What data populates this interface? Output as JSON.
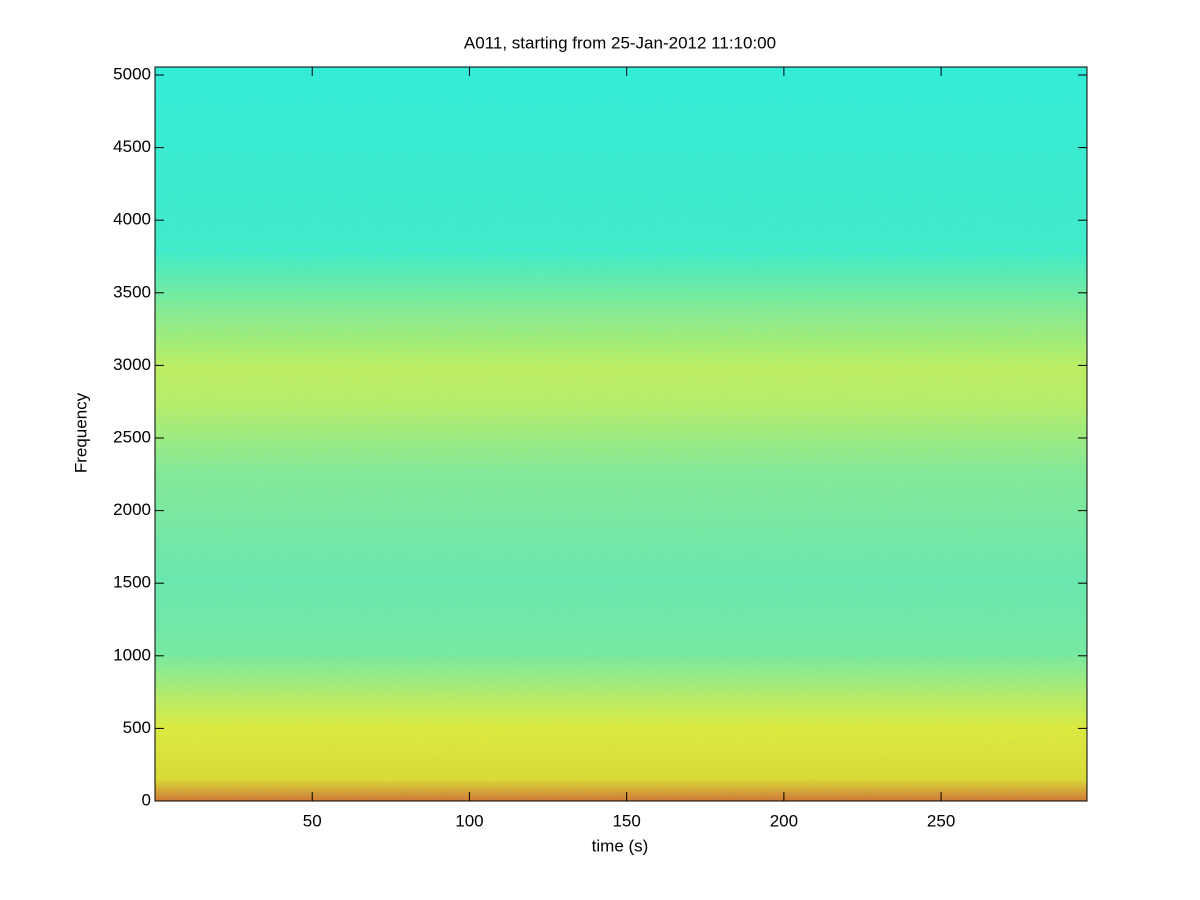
{
  "chart_data": {
    "type": "spectrogram",
    "title": "A011, starting from 25-Jan-2012 11:10:00",
    "xlabel": "time (s)",
    "ylabel": "Frequency",
    "xlim": [
      0,
      296.4
    ],
    "ylim": [
      0,
      5055
    ],
    "xticks": [
      50,
      100,
      150,
      200,
      250
    ],
    "yticks": [
      0,
      500,
      1000,
      1500,
      2000,
      2500,
      3000,
      3500,
      4000,
      4500,
      5000
    ]
  }
}
